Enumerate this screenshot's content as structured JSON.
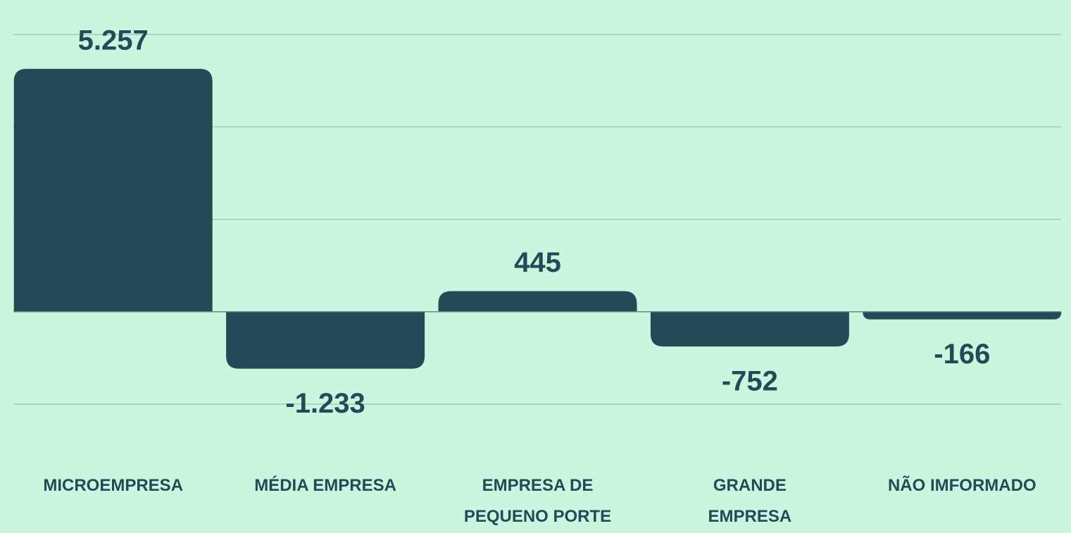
{
  "chart_data": {
    "type": "bar",
    "categories": [
      "MICROEMPRESA",
      "MÉDIA EMPRESA",
      "EMPRESA DE PEQUENO PORTE",
      "GRANDE EMPRESA",
      "NÃO IMFORMADO"
    ],
    "values": [
      5257,
      -1233,
      445,
      -752,
      -166
    ],
    "value_labels": [
      "5.257",
      "-1.233",
      "445",
      "-752",
      "-166"
    ],
    "color": "#244a57",
    "ylim": [
      -2000,
      6000
    ],
    "yticks": [
      -2000,
      0,
      2000,
      4000,
      6000
    ],
    "grid": true
  }
}
